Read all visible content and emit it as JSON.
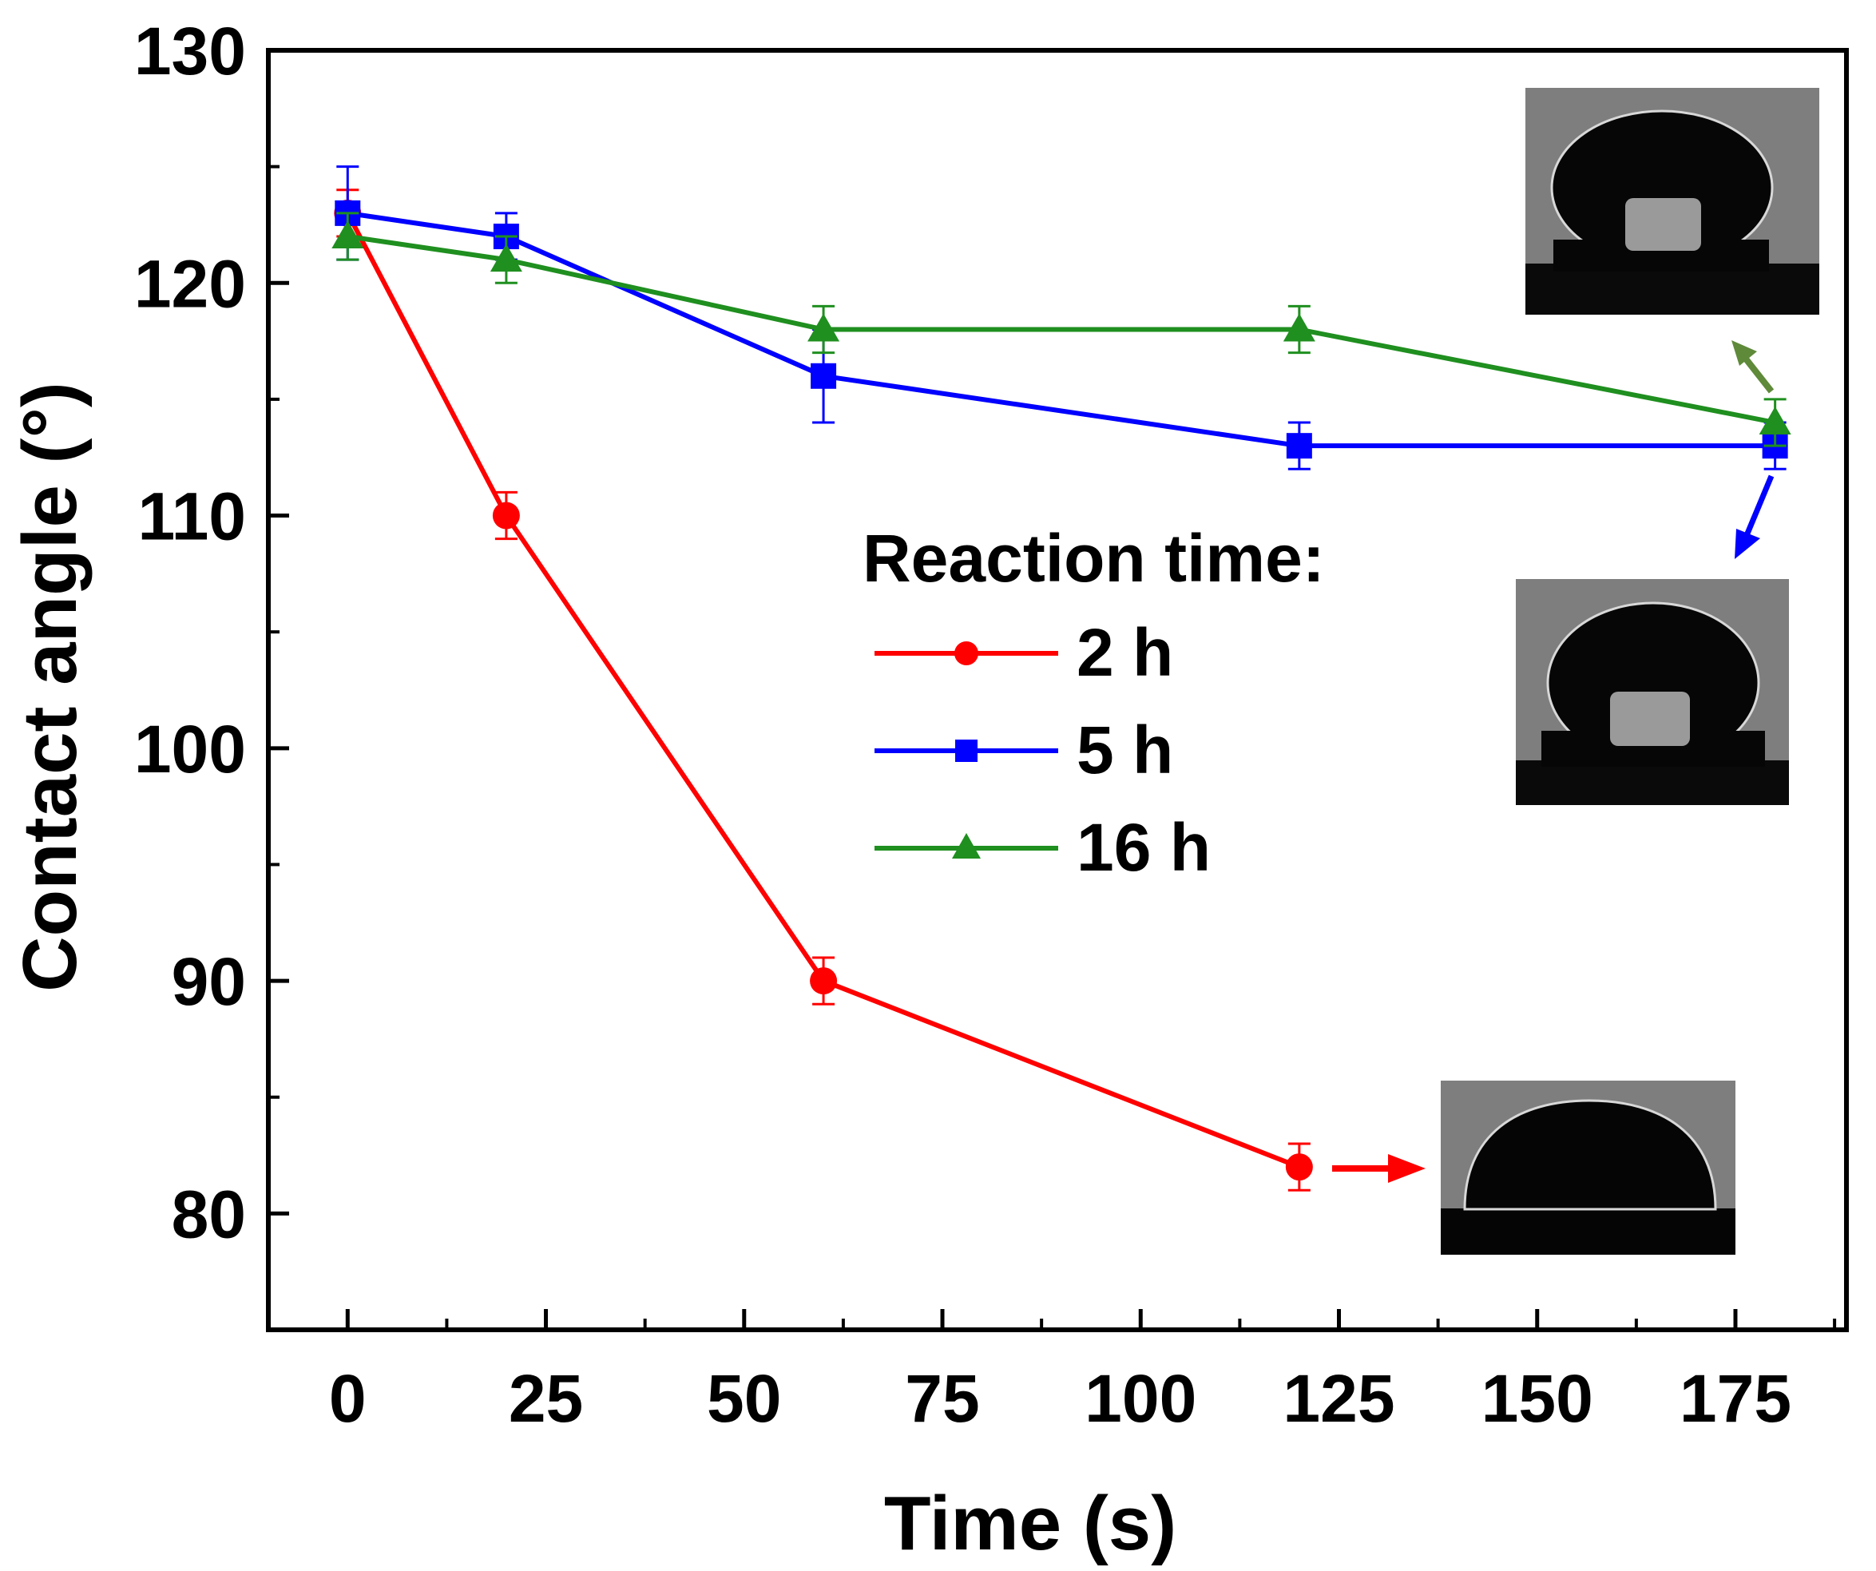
{
  "chart_data": {
    "type": "line",
    "xlabel": "Time (s)",
    "ylabel": "Contact angle (°)",
    "xlim": [
      -10,
      189
    ],
    "ylim": [
      75,
      130
    ],
    "x_ticks": [
      0,
      25,
      50,
      75,
      100,
      125,
      150,
      175
    ],
    "x_tick_labels": [
      "0",
      "25",
      "50",
      "75",
      "100",
      "125",
      "150",
      "175"
    ],
    "y_ticks": [
      80,
      90,
      100,
      110,
      120,
      130
    ],
    "y_tick_labels": [
      "80",
      "90",
      "100",
      "110",
      "120",
      "130"
    ],
    "legend": {
      "title": "Reaction time:",
      "placement": "center-right"
    },
    "series": [
      {
        "name": "2 h",
        "marker": "circle",
        "color": "#ff0000",
        "x": [
          0,
          20,
          60,
          120
        ],
        "values": [
          123,
          110,
          90,
          82
        ],
        "errors": [
          1,
          1,
          1,
          1
        ]
      },
      {
        "name": "5 h",
        "marker": "square",
        "color": "#0000ff",
        "x": [
          0,
          20,
          60,
          120,
          180
        ],
        "values": [
          123,
          122,
          116,
          113,
          113
        ],
        "errors": [
          2,
          1,
          2,
          1,
          1
        ]
      },
      {
        "name": "16 h",
        "marker": "triangle",
        "color": "#1f8f1f",
        "x": [
          0,
          20,
          60,
          120,
          180
        ],
        "values": [
          122,
          121,
          118,
          118,
          114
        ],
        "errors": [
          1,
          1,
          1,
          1,
          1
        ]
      }
    ],
    "insets": [
      {
        "name": "droplet-2h",
        "depicts": "droplet photo for 2 h sample at 120 s"
      },
      {
        "name": "droplet-5h",
        "depicts": "droplet photo for 5 h sample at 180 s"
      },
      {
        "name": "droplet-16h",
        "depicts": "droplet photo for 16 h sample at 180 s"
      }
    ],
    "colors": {
      "arrow_2h": "#ff0000",
      "arrow_5h": "#0000ff",
      "arrow_16h": "#5f8a3a"
    }
  }
}
